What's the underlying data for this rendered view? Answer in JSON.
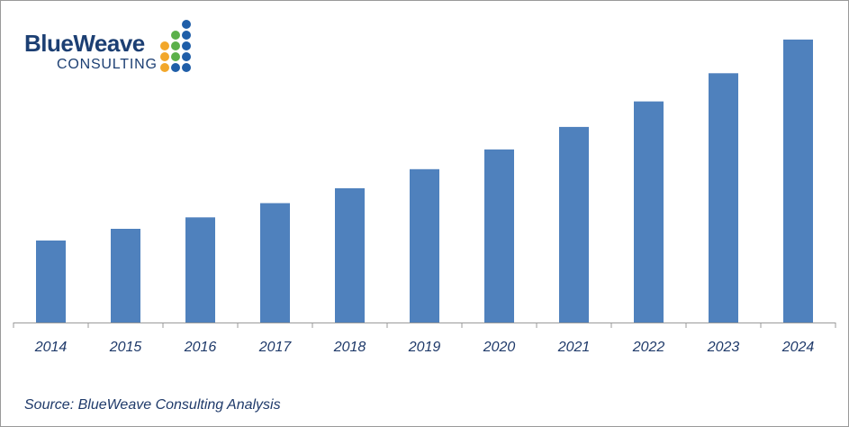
{
  "logo": {
    "brand": "BlueWeave",
    "sub": "CONSULTING",
    "colors": {
      "blue": "#1f5ea8",
      "green": "#5bb04a",
      "orange": "#f2a72a",
      "text": "#1c3f73"
    }
  },
  "source_label": "Source: BlueWeave Consulting Analysis",
  "chart_data": {
    "type": "bar",
    "categories": [
      "2014",
      "2015",
      "2016",
      "2017",
      "2018",
      "2019",
      "2020",
      "2021",
      "2022",
      "2023",
      "2024"
    ],
    "values": [
      28.7,
      32.8,
      36.8,
      41.8,
      47.0,
      53.7,
      60.6,
      68.5,
      77.4,
      87.3,
      99.1
    ],
    "title": "",
    "xlabel": "",
    "ylabel": "",
    "ylim": [
      0,
      100
    ],
    "grid": false,
    "bar_color": "#4f81bd",
    "axis_color": "#9a9a9a"
  }
}
